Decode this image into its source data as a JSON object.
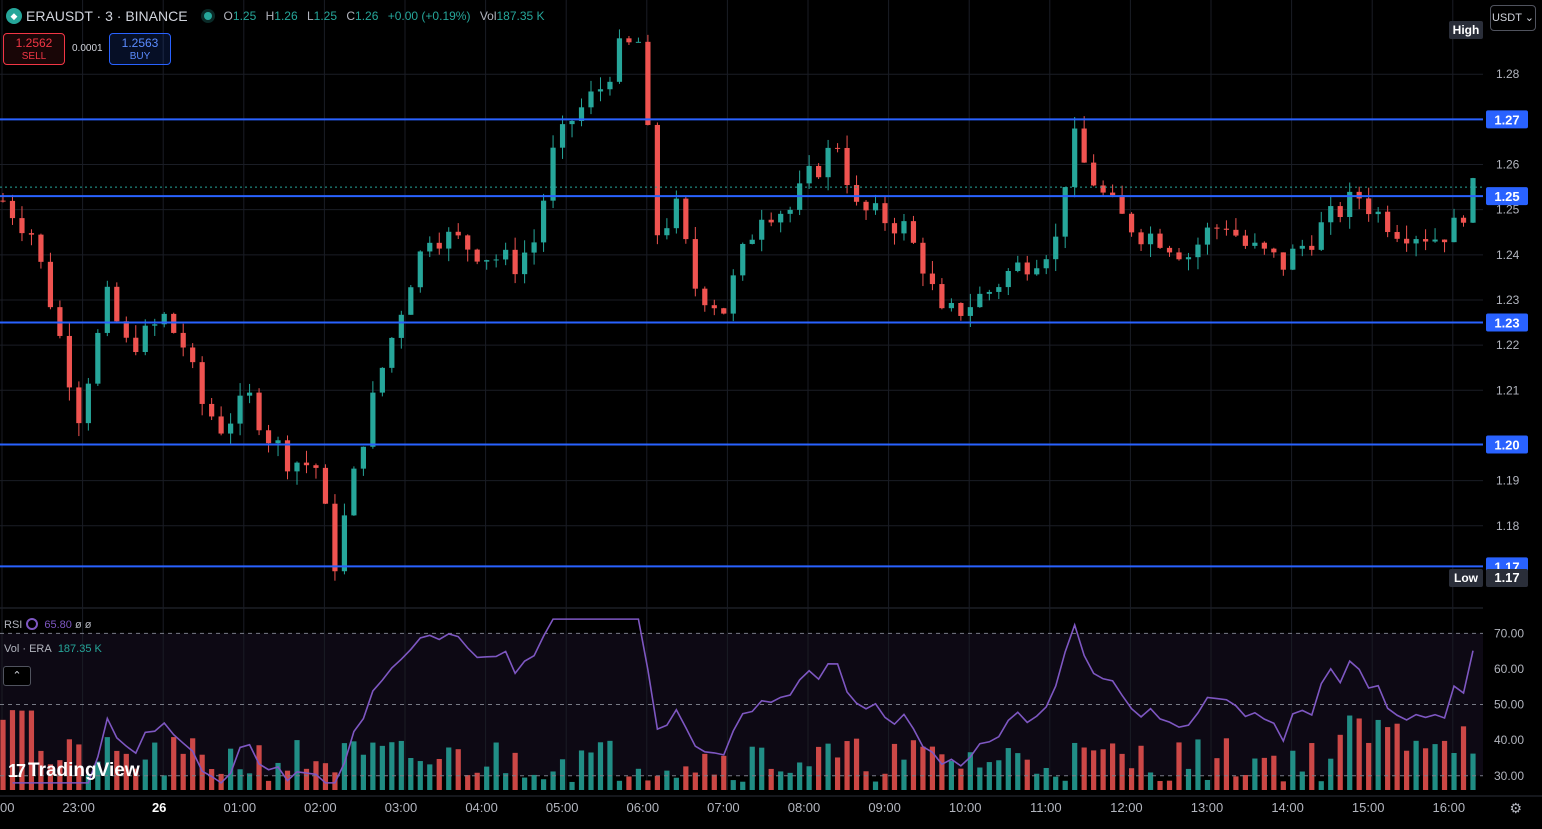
{
  "header": {
    "symbol": "ERAUSDT · 3 · BINANCE",
    "open_label": "O",
    "open": "1.25",
    "high_label": "H",
    "high": "1.26",
    "low_label": "L",
    "low": "1.25",
    "close_label": "C",
    "close": "1.26",
    "change": "+0.00 (+0.19%)",
    "vol_label": "Vol",
    "vol": "187.35 K"
  },
  "trade": {
    "sell_price": "1.2562",
    "sell_label": "SELL",
    "spread": "0.0001",
    "buy_price": "1.2563",
    "buy_label": "BUY"
  },
  "currency_button": "USDT ⌄",
  "indicators": {
    "rsi_label": "RSI",
    "rsi_value": "65.80",
    "rsi_extra": "ø ø",
    "vol_label": "Vol · ERA",
    "vol_value": "187.35 K",
    "collapse_glyph": "⌃"
  },
  "logo": {
    "mark": "17",
    "text": "TradingView"
  },
  "settings_icon": "gear-icon",
  "colors": {
    "up": "#26a69a",
    "down": "#ef5350",
    "level": "#2962ff",
    "rsi": "#7e57c2",
    "background": "#000000",
    "grid": "#1a1d25"
  },
  "chart_data": {
    "type": "candlestick",
    "interval": "3",
    "price_axis": {
      "ticks": [
        "1.28",
        "1.26",
        "1.25",
        "1.24",
        "1.23",
        "1.22",
        "1.21",
        "1.19",
        "1.18"
      ],
      "tick_values": [
        1.28,
        1.26,
        1.25,
        1.24,
        1.23,
        1.22,
        1.21,
        1.19,
        1.18
      ],
      "range": [
        1.164,
        1.292
      ]
    },
    "time_axis": {
      "labels": [
        "00",
        "23:00",
        "26",
        "01:00",
        "02:00",
        "03:00",
        "04:00",
        "05:00",
        "06:00",
        "07:00",
        "08:00",
        "09:00",
        "10:00",
        "11:00",
        "12:00",
        "13:00",
        "14:00",
        "15:00",
        "16:00"
      ],
      "bold": [
        "26"
      ]
    },
    "horizontal_levels": [
      {
        "value": 1.27,
        "label": "1.27"
      },
      {
        "value": 1.253,
        "label": "1.25"
      },
      {
        "value": 1.225,
        "label": "1.23"
      },
      {
        "value": 1.198,
        "label": "1.20"
      },
      {
        "value": 1.171,
        "label": "1.17"
      }
    ],
    "extreme_tags": {
      "high": "High",
      "low": "Low",
      "low_value": "1.17"
    },
    "current_price": 1.255,
    "close_series": [
      [
        0,
        1.252
      ],
      [
        3,
        1.245
      ],
      [
        5,
        1.23
      ],
      [
        8,
        1.205
      ],
      [
        11,
        1.23
      ],
      [
        13,
        1.22
      ],
      [
        15,
        1.222
      ],
      [
        17,
        1.226
      ],
      [
        19,
        1.22
      ],
      [
        21,
        1.207
      ],
      [
        23,
        1.202
      ],
      [
        26,
        1.208
      ],
      [
        28,
        1.2
      ],
      [
        30,
        1.195
      ],
      [
        33,
        1.193
      ],
      [
        35,
        1.172
      ],
      [
        38,
        1.2
      ],
      [
        40,
        1.215
      ],
      [
        43,
        1.235
      ],
      [
        45,
        1.245
      ],
      [
        48,
        1.243
      ],
      [
        51,
        1.24
      ],
      [
        54,
        1.238
      ],
      [
        56,
        1.243
      ],
      [
        58,
        1.262
      ],
      [
        60,
        1.27
      ],
      [
        63,
        1.277
      ],
      [
        65,
        1.285
      ],
      [
        67,
        1.287
      ],
      [
        69,
        1.245
      ],
      [
        71,
        1.25
      ],
      [
        73,
        1.233
      ],
      [
        76,
        1.228
      ],
      [
        78,
        1.24
      ],
      [
        80,
        1.25
      ],
      [
        83,
        1.25
      ],
      [
        85,
        1.257
      ],
      [
        88,
        1.265
      ],
      [
        90,
        1.25
      ],
      [
        93,
        1.248
      ],
      [
        95,
        1.246
      ],
      [
        97,
        1.238
      ],
      [
        99,
        1.226
      ],
      [
        101,
        1.228
      ],
      [
        104,
        1.232
      ],
      [
        106,
        1.236
      ],
      [
        109,
        1.24
      ],
      [
        111,
        1.243
      ],
      [
        112,
        1.257
      ],
      [
        113,
        1.265
      ],
      [
        114,
        1.26
      ],
      [
        116,
        1.253
      ],
      [
        118,
        1.248
      ],
      [
        120,
        1.245
      ],
      [
        122,
        1.244
      ],
      [
        125,
        1.24
      ],
      [
        127,
        1.245
      ],
      [
        129,
        1.247
      ],
      [
        131,
        1.242
      ],
      [
        133,
        1.24
      ],
      [
        135,
        1.238
      ],
      [
        137,
        1.242
      ],
      [
        139,
        1.246
      ],
      [
        141,
        1.25
      ],
      [
        143,
        1.253
      ],
      [
        145,
        1.249
      ],
      [
        147,
        1.246
      ],
      [
        149,
        1.245
      ],
      [
        151,
        1.244
      ],
      [
        153,
        1.246
      ],
      [
        155,
        1.254
      ]
    ],
    "rsi": {
      "label": "RSI",
      "value": 65.8,
      "axis_ticks": [
        "70.00",
        "60.00",
        "50.00",
        "40.00",
        "30.00"
      ],
      "axis_values": [
        70,
        60,
        50,
        40,
        30
      ],
      "bands": [
        70,
        50,
        30
      ],
      "range": [
        26,
        76
      ]
    },
    "volume": {
      "label": "Vol · ERA",
      "value": "187.35 K"
    }
  }
}
